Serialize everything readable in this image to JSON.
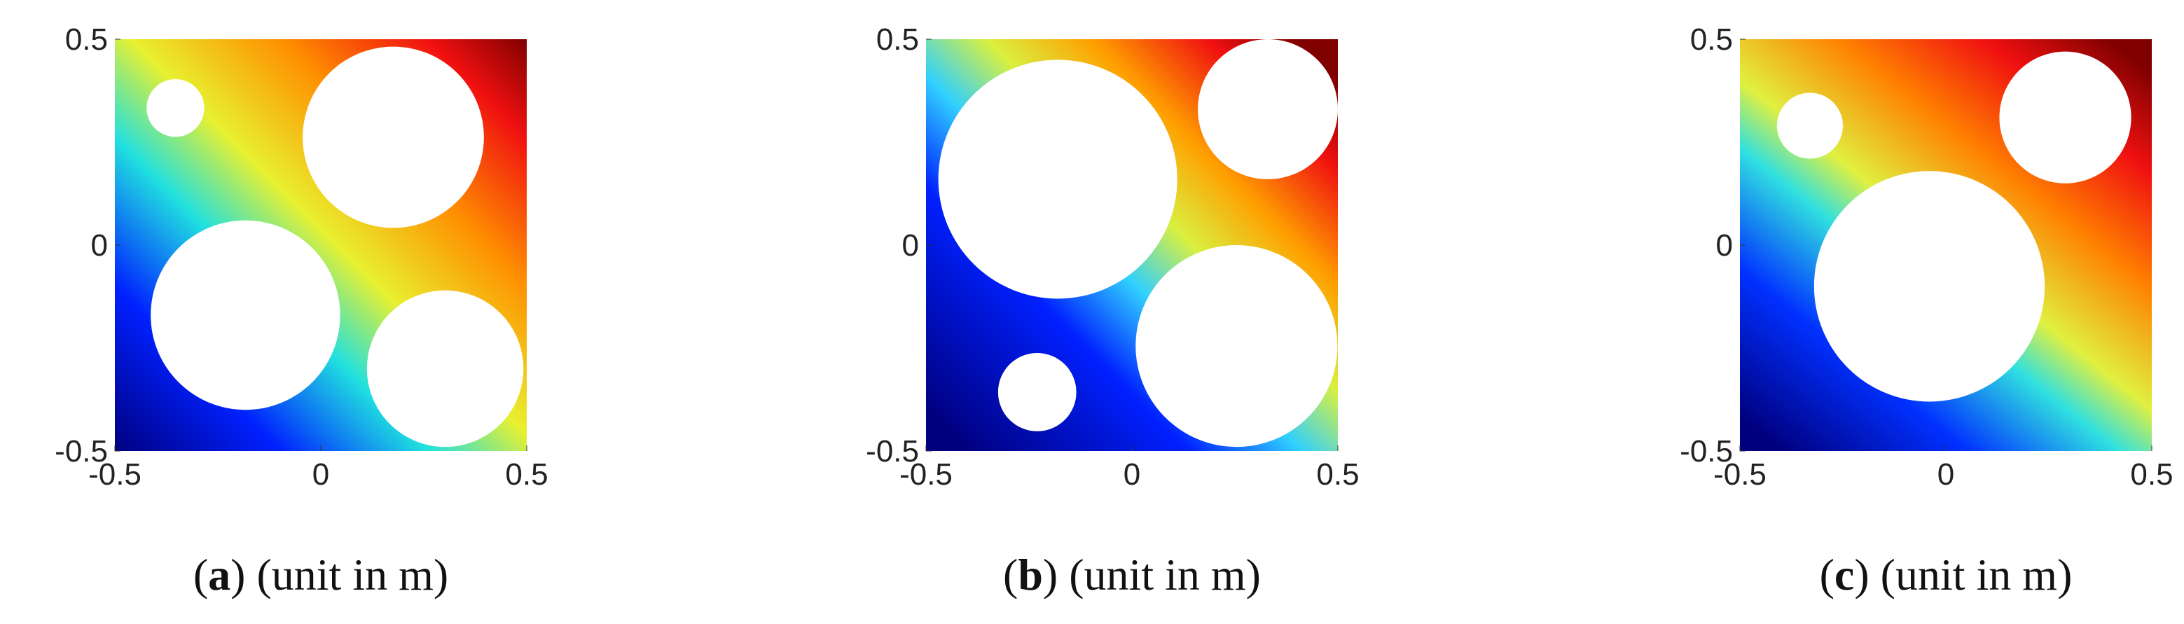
{
  "chart_data": [
    {
      "type": "heatmap",
      "caption_parts": [
        "(",
        "a",
        ") (unit in m)"
      ],
      "xlim": [
        -0.5,
        0.5
      ],
      "ylim": [
        -0.5,
        0.5
      ],
      "xticks": [
        -0.5,
        0,
        0.5
      ],
      "yticks": [
        -0.5,
        0,
        0.5
      ],
      "holes": [
        {
          "cx": -0.353,
          "cy": 0.333,
          "r": 0.07
        },
        {
          "cx": 0.176,
          "cy": 0.262,
          "r": 0.22
        },
        {
          "cx": -0.183,
          "cy": -0.17,
          "r": 0.23
        },
        {
          "cx": 0.302,
          "cy": -0.3,
          "r": 0.19
        }
      ]
    },
    {
      "type": "heatmap",
      "caption_parts": [
        "(",
        "b",
        ") (unit in m)"
      ],
      "xlim": [
        -0.5,
        0.5
      ],
      "ylim": [
        -0.5,
        0.5
      ],
      "xticks": [
        -0.5,
        0,
        0.5
      ],
      "yticks": [
        -0.5,
        0,
        0.5
      ],
      "holes": [
        {
          "cx": -0.18,
          "cy": 0.16,
          "r": 0.29
        },
        {
          "cx": 0.33,
          "cy": 0.33,
          "r": 0.17
        },
        {
          "cx": 0.254,
          "cy": -0.245,
          "r": 0.245
        },
        {
          "cx": -0.23,
          "cy": -0.357,
          "r": 0.095
        }
      ]
    },
    {
      "type": "heatmap",
      "caption_parts": [
        "(",
        "c",
        ") (unit in m)"
      ],
      "xlim": [
        -0.5,
        0.5
      ],
      "ylim": [
        -0.5,
        0.5
      ],
      "xticks": [
        -0.5,
        0,
        0.5
      ],
      "yticks": [
        -0.5,
        0,
        0.5
      ],
      "holes": [
        {
          "cx": -0.33,
          "cy": 0.29,
          "r": 0.08
        },
        {
          "cx": 0.29,
          "cy": 0.31,
          "r": 0.16
        },
        {
          "cx": -0.04,
          "cy": -0.1,
          "r": 0.28
        }
      ]
    }
  ]
}
